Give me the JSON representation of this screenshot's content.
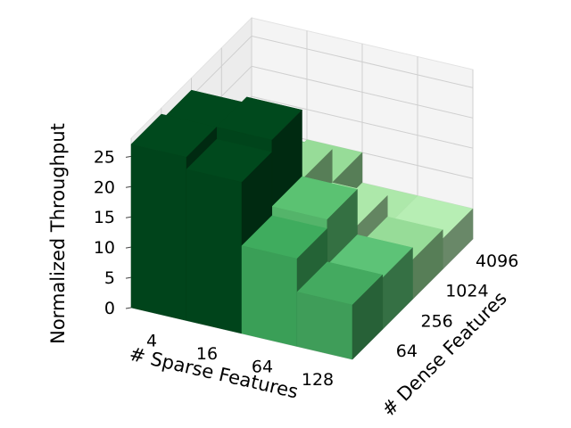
{
  "chart_data": {
    "type": "bar3d",
    "title": "",
    "zlabel": "Normalized Throughput",
    "xlabel": "# Sparse Features",
    "ylabel": "# Dense Features",
    "x_categories": [
      "4",
      "16",
      "64",
      "128"
    ],
    "y_categories": [
      "64",
      "256",
      "1024",
      "4096"
    ],
    "z_ticks": [
      0,
      5,
      10,
      15,
      20,
      25
    ],
    "zlim": [
      0,
      28
    ],
    "values": [
      [
        27,
        26,
        13,
        9.5
      ],
      [
        25,
        27,
        15.5,
        10
      ],
      [
        14.5,
        16,
        10,
        5
      ],
      [
        9,
        8.5,
        6.5,
        5
      ]
    ],
    "colors": [
      [
        "#00441b",
        "#00441b",
        "#40a05a",
        "#70b779"
      ],
      [
        "#00441b",
        "#00441b",
        "#8ccc8d",
        "#8ccc8d"
      ],
      [
        "#3a9f57",
        "#54b46a",
        "#a0d79d",
        "#a0d79d"
      ],
      [
        "#3f9d59",
        "#56b56e",
        "#8ccc8d",
        "#a9dca7"
      ]
    ]
  }
}
